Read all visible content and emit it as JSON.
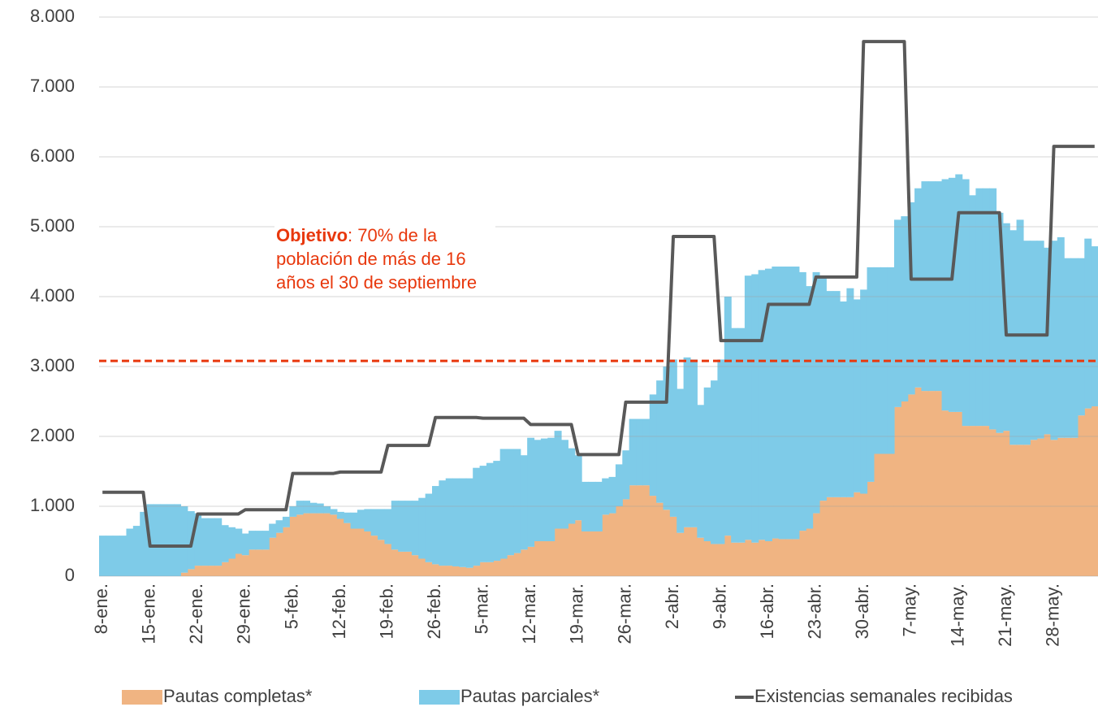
{
  "chart_data": {
    "type": "area",
    "stacked": true,
    "annotation": {
      "bold": "Objetivo",
      "text": ": 70% de la población de más de 16 años el 30 de septiembre",
      "color": "#e8380d"
    },
    "target_line": {
      "value": 3080,
      "color": "#e8380d",
      "dashed": true
    },
    "categories": [
      "8-ene.",
      null,
      null,
      null,
      null,
      null,
      null,
      "15-ene.",
      null,
      null,
      null,
      null,
      null,
      null,
      "22-ene.",
      null,
      null,
      null,
      null,
      null,
      null,
      "29-ene.",
      null,
      null,
      null,
      null,
      null,
      null,
      "5-feb.",
      null,
      null,
      null,
      null,
      null,
      null,
      "12-feb.",
      null,
      null,
      null,
      null,
      null,
      null,
      "19-feb.",
      null,
      null,
      null,
      null,
      null,
      null,
      "26-feb.",
      null,
      null,
      null,
      null,
      null,
      null,
      "5-mar.",
      null,
      null,
      null,
      null,
      null,
      null,
      "12-mar.",
      null,
      null,
      null,
      null,
      null,
      null,
      "19-mar.",
      null,
      null,
      null,
      null,
      null,
      null,
      "26-mar.",
      null,
      null,
      null,
      null,
      null,
      null,
      "2-abr.",
      null,
      null,
      null,
      null,
      null,
      null,
      "9-abr.",
      null,
      null,
      null,
      null,
      null,
      null,
      "16-abr.",
      null,
      null,
      null,
      null,
      null,
      null,
      "23-abr.",
      null,
      null,
      null,
      null,
      null,
      null,
      "30-abr.",
      null,
      null,
      null,
      null,
      null,
      null,
      "7-may.",
      null,
      null,
      null,
      null,
      null,
      null,
      "14-may.",
      null,
      null,
      null,
      null,
      null,
      null,
      "21-may.",
      null,
      null,
      null,
      null,
      null,
      null,
      "28-may.",
      null,
      null,
      null,
      null,
      null,
      null
    ],
    "series": [
      {
        "name": "Pautas completas*",
        "type": "area",
        "color": "#f0b482",
        "values": [
          0,
          0,
          0,
          0,
          0,
          0,
          0,
          0,
          0,
          0,
          0,
          0,
          50,
          100,
          150,
          150,
          150,
          150,
          200,
          250,
          320,
          300,
          380,
          380,
          380,
          550,
          620,
          700,
          850,
          880,
          900,
          900,
          900,
          900,
          880,
          820,
          760,
          680,
          680,
          640,
          580,
          520,
          460,
          380,
          350,
          350,
          300,
          250,
          200,
          170,
          150,
          150,
          140,
          130,
          120,
          150,
          200,
          200,
          220,
          250,
          300,
          330,
          380,
          420,
          500,
          500,
          500,
          680,
          680,
          750,
          800,
          640,
          640,
          640,
          880,
          900,
          1000,
          1100,
          1300,
          1300,
          1300,
          1150,
          1050,
          950,
          850,
          620,
          700,
          700,
          550,
          500,
          460,
          460,
          580,
          480,
          480,
          520,
          480,
          520,
          500,
          540,
          530,
          530,
          530,
          650,
          680,
          900,
          1080,
          1130,
          1130,
          1130,
          1130,
          1200,
          1180,
          1350,
          1750,
          1750,
          1750,
          2420,
          2500,
          2600,
          2700,
          2650,
          2650,
          2650,
          2370,
          2350,
          2350,
          2150,
          2150,
          2150,
          2150,
          2100,
          2050,
          2080,
          1880,
          1880,
          1880,
          1950,
          1970,
          2030,
          1950,
          1980,
          1980,
          1980,
          2300,
          2400,
          2430
        ]
      },
      {
        "name": "Pautas parciales*",
        "type": "area",
        "color": "#7ecbe8",
        "values": [
          580,
          580,
          580,
          580,
          680,
          720,
          920,
          1030,
          1030,
          1030,
          1030,
          1030,
          950,
          830,
          750,
          680,
          680,
          680,
          530,
          450,
          360,
          310,
          270,
          270,
          270,
          200,
          180,
          150,
          150,
          200,
          180,
          150,
          140,
          100,
          80,
          100,
          150,
          230,
          270,
          320,
          380,
          440,
          500,
          700,
          730,
          730,
          780,
          870,
          980,
          1120,
          1220,
          1250,
          1260,
          1270,
          1280,
          1400,
          1380,
          1420,
          1430,
          1570,
          1520,
          1490,
          1350,
          1560,
          1450,
          1470,
          1480,
          1400,
          1270,
          1080,
          930,
          710,
          710,
          710,
          520,
          520,
          600,
          700,
          950,
          950,
          950,
          1450,
          1750,
          2050,
          2250,
          2060,
          2430,
          2400,
          1900,
          2200,
          2340,
          2640,
          3420,
          3070,
          3070,
          3780,
          3840,
          3860,
          3900,
          3890,
          3900,
          3900,
          3900,
          3700,
          3470,
          3450,
          3220,
          2950,
          2950,
          2800,
          2990,
          2760,
          2920,
          3070,
          2670,
          2670,
          2670,
          2680,
          2650,
          2750,
          2850,
          3000,
          3000,
          3000,
          3310,
          3350,
          3400,
          3530,
          3300,
          3400,
          3400,
          3450,
          3150,
          2970,
          3070,
          3220,
          2920,
          2850,
          2830,
          2670,
          2850,
          2870,
          2570,
          2570,
          2250,
          2430,
          2290
        ]
      },
      {
        "name": "Existencias semanales recibidas",
        "type": "line",
        "color": "#595959",
        "values": [
          1200,
          1200,
          1200,
          1200,
          1200,
          1200,
          1200,
          430,
          430,
          430,
          430,
          430,
          430,
          430,
          890,
          890,
          890,
          890,
          890,
          890,
          890,
          950,
          950,
          950,
          950,
          950,
          950,
          950,
          1470,
          1470,
          1470,
          1470,
          1470,
          1470,
          1470,
          1490,
          1490,
          1490,
          1490,
          1490,
          1490,
          1490,
          1870,
          1870,
          1870,
          1870,
          1870,
          1870,
          1870,
          2270,
          2270,
          2270,
          2270,
          2270,
          2270,
          2270,
          2260,
          2260,
          2260,
          2260,
          2260,
          2260,
          2260,
          2170,
          2170,
          2170,
          2170,
          2170,
          2170,
          2170,
          1740,
          1740,
          1740,
          1740,
          1740,
          1740,
          1740,
          2490,
          2490,
          2490,
          2490,
          2490,
          2490,
          2490,
          4860,
          4860,
          4860,
          4860,
          4860,
          4860,
          4860,
          3370,
          3370,
          3370,
          3370,
          3370,
          3370,
          3370,
          3890,
          3890,
          3890,
          3890,
          3890,
          3890,
          3890,
          4280,
          4280,
          4280,
          4280,
          4280,
          4280,
          4280,
          7650,
          7650,
          7650,
          7650,
          7650,
          7650,
          7650,
          4250,
          4250,
          4250,
          4250,
          4250,
          4250,
          4250,
          5200,
          5200,
          5200,
          5200,
          5200,
          5200,
          5200,
          3450,
          3450,
          3450,
          3450,
          3450,
          3450,
          3450,
          6150,
          6150,
          6150,
          6150,
          6150,
          6150,
          6150
        ]
      }
    ],
    "ylim": [
      0,
      8000
    ],
    "yticks": [
      0,
      {
        "value": 1000,
        "label": "1.000"
      },
      {
        "value": 2000,
        "label": "2.000"
      },
      {
        "value": 3000,
        "label": "3.000"
      },
      {
        "value": 4000,
        "label": "4.000"
      },
      {
        "value": 5000,
        "label": "5.000"
      },
      {
        "value": 6000,
        "label": "6.000"
      },
      {
        "value": 7000,
        "label": "7.000"
      },
      {
        "value": 8000,
        "label": "8.000"
      }
    ],
    "grid": true,
    "legend": "bottom"
  }
}
